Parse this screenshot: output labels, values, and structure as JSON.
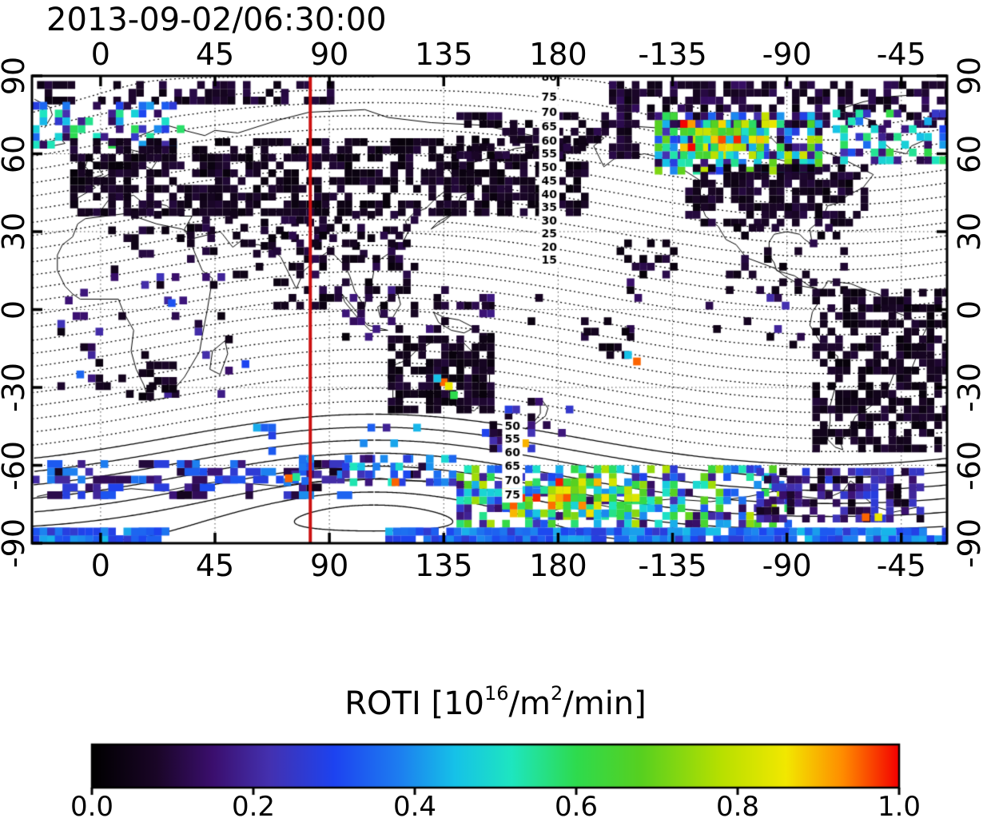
{
  "chart_data": {
    "type": "heatmap",
    "title": "2013-09-02/06:30:00",
    "projection": "equirectangular-world-map",
    "map": {
      "lon_min": -27,
      "lon_span": 360,
      "lat_min": -90,
      "lat_max": 90
    },
    "x_axis": {
      "ticks": [
        0,
        45,
        90,
        135,
        180,
        -135,
        -90,
        -45
      ],
      "label_sides": "top and bottom"
    },
    "y_axis": {
      "ticks": [
        90,
        60,
        30,
        0,
        -30,
        -60,
        -90
      ],
      "label_sides": "left and right"
    },
    "grid": {
      "style": "dotted",
      "lon_step": 45,
      "lat_step": 30
    },
    "red_meridian_lon": 82.5,
    "geomagnetic_pole": {
      "lat": 80.3,
      "lon": -72.6
    },
    "contours": {
      "meaning": "geomagnetic latitude",
      "dotted_levels": [
        -45,
        -40,
        -35,
        -30,
        -25,
        -20,
        -15,
        -10,
        -5,
        0,
        5,
        10,
        15,
        20,
        25,
        30,
        35,
        40,
        45,
        50,
        55,
        60,
        65,
        70,
        75,
        80
      ],
      "solid_levels": [
        -50,
        -55,
        -60,
        -65,
        -70,
        -75,
        -80,
        -85
      ],
      "north_label_levels": [
        80,
        75,
        70,
        65,
        60,
        55,
        50,
        45,
        40,
        35,
        30,
        25,
        20,
        15
      ],
      "south_label_levels": [
        50,
        55,
        60,
        65,
        70,
        75
      ],
      "north_label_lon": 176.5,
      "south_label_lon": 162
    },
    "colorbar": {
      "label_prefix": "ROTI  [10",
      "label_sup1": "16",
      "label_mid": "/m",
      "label_sup2": "2",
      "label_suffix": "/min]",
      "ticks": [
        "0.0",
        "0.2",
        "0.4",
        "0.6",
        "0.8",
        "1.0"
      ],
      "tick_values": [
        0,
        0.2,
        0.4,
        0.6,
        0.8,
        1.0
      ],
      "stops": [
        {
          "v": 0.0,
          "c": "#000000"
        },
        {
          "v": 0.08,
          "c": "#1a0627"
        },
        {
          "v": 0.15,
          "c": "#3b0f6e"
        },
        {
          "v": 0.22,
          "c": "#4431b0"
        },
        {
          "v": 0.3,
          "c": "#1d43f0"
        },
        {
          "v": 0.38,
          "c": "#1d7df0"
        },
        {
          "v": 0.45,
          "c": "#16c2e8"
        },
        {
          "v": 0.52,
          "c": "#1ee6c0"
        },
        {
          "v": 0.6,
          "c": "#2edb4e"
        },
        {
          "v": 0.68,
          "c": "#57d020"
        },
        {
          "v": 0.78,
          "c": "#b8e000"
        },
        {
          "v": 0.86,
          "c": "#f2e800"
        },
        {
          "v": 0.93,
          "c": "#ff8c00"
        },
        {
          "v": 1.0,
          "c": "#f40000"
        }
      ]
    },
    "regions": [
      {
        "name": "arctic-top-west",
        "lon": [
          -25,
          95
        ],
        "lat": [
          79,
          88
        ],
        "density": 0.4,
        "v": [
          0.03,
          0.12
        ]
      },
      {
        "name": "arctic-top-east",
        "lon": [
          200,
          333
        ],
        "lat": [
          70,
          88
        ],
        "density": 0.6,
        "v": [
          0.03,
          0.14
        ]
      },
      {
        "name": "scandinavia-arctic-bright",
        "lon": [
          -27,
          32
        ],
        "lat": [
          62,
          79
        ],
        "density": 0.5,
        "v": [
          0.08,
          0.6
        ]
      },
      {
        "name": "eurasia-dark-band",
        "lon": [
          -12,
          192
        ],
        "lat": [
          36,
          64
        ],
        "density": 0.62,
        "v": [
          0.02,
          0.1
        ]
      },
      {
        "name": "ne-siberia-dark",
        "lon": [
          140,
          210
        ],
        "lat": [
          58,
          76
        ],
        "density": 0.5,
        "v": [
          0.02,
          0.12
        ]
      },
      {
        "name": "central-asia-sparse",
        "lon": [
          0,
          120
        ],
        "lat": [
          20,
          36
        ],
        "density": 0.18,
        "v": [
          0.02,
          0.12
        ]
      },
      {
        "name": "india-sea-scatter",
        "lon": [
          68,
          125
        ],
        "lat": [
          0,
          34
        ],
        "density": 0.28,
        "v": [
          0.02,
          0.12
        ]
      },
      {
        "name": "maritime-se-asia",
        "lon": [
          95,
          155
        ],
        "lat": [
          -12,
          8
        ],
        "density": 0.28,
        "v": [
          0.02,
          0.18
        ]
      },
      {
        "name": "australia-dark",
        "lon": [
          113,
          154
        ],
        "lat": [
          -40,
          -11
        ],
        "density": 0.7,
        "v": [
          0.02,
          0.1
        ]
      },
      {
        "name": "nz-tasman-scatter",
        "lon": [
          150,
          185
        ],
        "lat": [
          -55,
          -36
        ],
        "density": 0.25,
        "v": [
          0.03,
          0.3
        ]
      },
      {
        "name": "pacific-equator-sparse",
        "lon": [
          150,
          215
        ],
        "lat": [
          -12,
          12
        ],
        "density": 0.07,
        "v": [
          0.02,
          0.15
        ]
      },
      {
        "name": "hawaii-cluster",
        "lon": [
          203,
          225
        ],
        "lat": [
          12,
          26
        ],
        "density": 0.4,
        "v": [
          0.02,
          0.15
        ]
      },
      {
        "name": "mid-pacific-south-cluster",
        "lon": [
          190,
          207
        ],
        "lat": [
          -19,
          -8
        ],
        "density": 0.4,
        "v": [
          0.02,
          0.1
        ]
      },
      {
        "name": "na-aurora-bright",
        "lon": [
          218,
          282
        ],
        "lat": [
          52,
          74
        ],
        "density": 0.72,
        "v": [
          0.08,
          0.85
        ]
      },
      {
        "name": "na-aurora-core",
        "lon": [
          228,
          260
        ],
        "lat": [
          58,
          71
        ],
        "density": 0.85,
        "v": [
          0.4,
          1.0
        ]
      },
      {
        "name": "north-america-dark",
        "lon": [
          230,
          302
        ],
        "lat": [
          32,
          56
        ],
        "density": 0.6,
        "v": [
          0.02,
          0.11
        ]
      },
      {
        "name": "greenland-labrador-bright",
        "lon": [
          288,
          333
        ],
        "lat": [
          56,
          75
        ],
        "density": 0.55,
        "v": [
          0.08,
          0.65
        ]
      },
      {
        "name": "mexico-caribbean",
        "lon": [
          243,
          292
        ],
        "lat": [
          6,
          32
        ],
        "density": 0.25,
        "v": [
          0.02,
          0.12
        ]
      },
      {
        "name": "east-pacific-sparse",
        "lon": [
          235,
          278
        ],
        "lat": [
          -15,
          6
        ],
        "density": 0.07,
        "v": [
          0.02,
          0.25
        ]
      },
      {
        "name": "south-america-dark",
        "lon": [
          280,
          333
        ],
        "lat": [
          -55,
          6
        ],
        "density": 0.6,
        "v": [
          0.02,
          0.1
        ]
      },
      {
        "name": "africa-sparse",
        "lon": [
          -17,
          52
        ],
        "lat": [
          -34,
          16
        ],
        "density": 0.1,
        "v": [
          0.02,
          0.25
        ]
      },
      {
        "name": "south-africa-cluster",
        "lon": [
          15,
          33
        ],
        "lat": [
          -35,
          -21
        ],
        "density": 0.55,
        "v": [
          0.02,
          0.1
        ]
      },
      {
        "name": "mideast-sparse",
        "lon": [
          34,
          62
        ],
        "lat": [
          12,
          34
        ],
        "density": 0.2,
        "v": [
          0.02,
          0.12
        ]
      },
      {
        "name": "southern-ocean-west-band",
        "lon": [
          -27,
          95
        ],
        "lat": [
          -73,
          -58
        ],
        "density": 0.3,
        "v": [
          0.05,
          0.4
        ],
        "wide": true
      },
      {
        "name": "south-indian-scatter",
        "lon": [
          60,
          125
        ],
        "lat": [
          -68,
          -46
        ],
        "density": 0.18,
        "v": [
          0.05,
          0.45
        ]
      },
      {
        "name": "aus-sector-aurora",
        "lon": [
          95,
          140
        ],
        "lat": [
          -68,
          -56
        ],
        "density": 0.35,
        "v": [
          0.1,
          0.55
        ]
      },
      {
        "name": "antarctic-bright-band",
        "lon": [
          140,
          270
        ],
        "lat": [
          -84,
          -62
        ],
        "density": 0.62,
        "v": [
          0.12,
          0.8
        ]
      },
      {
        "name": "antarctic-red-core",
        "lon": [
          158,
          210
        ],
        "lat": [
          -80,
          -66
        ],
        "density": 0.75,
        "v": [
          0.35,
          1.0
        ]
      },
      {
        "name": "antarctic-peninsula-dark",
        "lon": [
          258,
          322
        ],
        "lat": [
          -82,
          -62
        ],
        "density": 0.68,
        "v": [
          0.03,
          0.28
        ]
      },
      {
        "name": "bottom-cyan-row-west",
        "lon": [
          -27,
          25
        ],
        "lat": [
          -90,
          -84
        ],
        "density": 0.85,
        "v": [
          0.25,
          0.45
        ],
        "wide": true
      },
      {
        "name": "bottom-cyan-row-east",
        "lon": [
          112,
          333
        ],
        "lat": [
          -90,
          -84
        ],
        "density": 0.85,
        "v": [
          0.25,
          0.45
        ],
        "wide": true
      }
    ],
    "hotspots": [
      {
        "lon": 135,
        "lat": -28,
        "v": 0.95
      },
      {
        "lon": 137,
        "lat": -29.5,
        "v": 0.85
      },
      {
        "lon": 139,
        "lat": -33,
        "v": 0.6
      },
      {
        "lon": 132.5,
        "lat": -26.5,
        "v": 0.45
      },
      {
        "lon": 211,
        "lat": -20,
        "v": 0.95
      },
      {
        "lon": 207.5,
        "lat": -17.5,
        "v": 0.45
      },
      {
        "lon": 163,
        "lat": -50,
        "v": 0.45
      },
      {
        "lon": 167,
        "lat": -51.5,
        "v": 0.9
      },
      {
        "lon": 74,
        "lat": -65,
        "v": 0.95
      },
      {
        "lon": 77,
        "lat": -64.5,
        "v": 0.55
      },
      {
        "lon": 80.5,
        "lat": -66,
        "v": 0.35
      },
      {
        "lon": 116,
        "lat": -66.5,
        "v": 0.95
      },
      {
        "lon": 301,
        "lat": -80,
        "v": 0.95
      },
      {
        "lon": 306,
        "lat": -80,
        "v": 0.85
      },
      {
        "lon": 28,
        "lat": 2.5,
        "v": 0.32
      },
      {
        "lon": -8,
        "lat": -25,
        "v": 0.35
      },
      {
        "lon": 57,
        "lat": -21,
        "v": 0.3
      }
    ]
  }
}
